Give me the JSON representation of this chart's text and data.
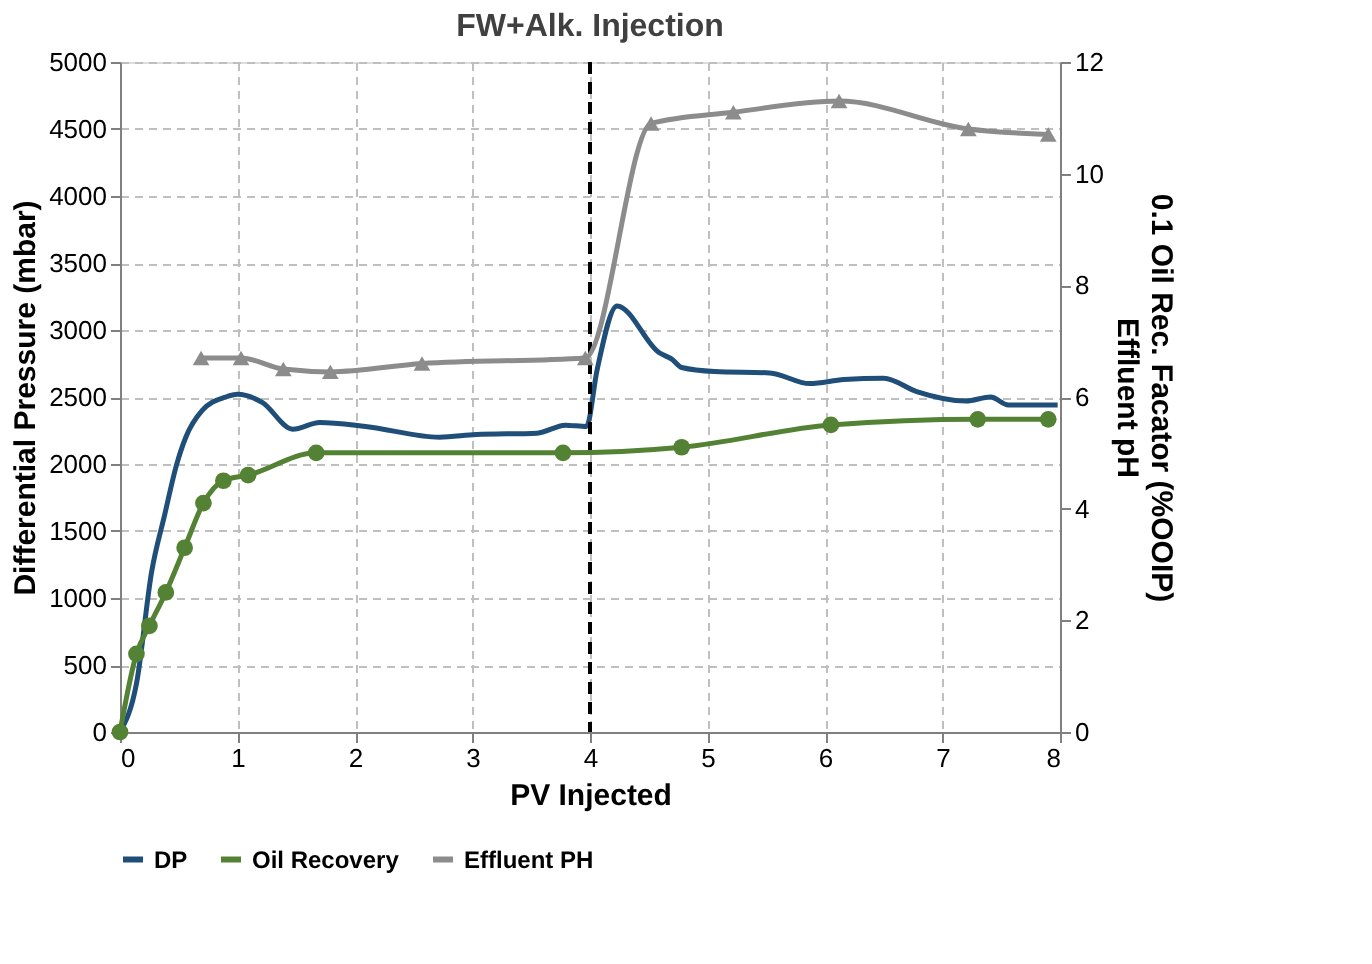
{
  "chart_data": {
    "type": "line",
    "title": "FW+Alk. Injection",
    "xlabel": "PV Injected",
    "ylabel": "Differential Pressure (mbar)",
    "y2label": "0.1 Oil Rec. Facator (%OOIP)\nEffluent pH",
    "xlim": [
      0,
      8
    ],
    "xticks": [
      0,
      1,
      2,
      3,
      4,
      5,
      6,
      7,
      8
    ],
    "ylim": [
      0,
      5000
    ],
    "yticks": [
      0,
      500,
      1000,
      1500,
      2000,
      2500,
      3000,
      3500,
      4000,
      4500,
      5000
    ],
    "y2lim": [
      0,
      12
    ],
    "y2ticks": [
      0,
      2,
      4,
      6,
      8,
      10,
      12
    ],
    "grid": true,
    "legend": "bottom",
    "line_style": "solid",
    "ref_lines": [
      {
        "axis": "x",
        "value": 4,
        "color": "#000000",
        "line_style": "dashed"
      }
    ],
    "series": [
      {
        "name": "DP",
        "color": "#1f4e79",
        "marker": "none",
        "x": [
          0,
          0.14,
          0.27,
          0.38,
          0.48,
          0.56,
          0.7,
          0.9,
          1.0,
          1.21,
          1.47,
          1.7,
          2.09,
          2.72,
          3.03,
          3.55,
          3.79,
          3.97,
          4.06,
          4.23,
          4.59,
          4.7,
          4.78,
          5.06,
          5.53,
          5.87,
          6.16,
          6.5,
          6.78,
          7.2,
          7.41,
          7.56,
          7.98
        ],
        "values": [
          0,
          360,
          1200,
          1620,
          1990,
          2200,
          2400,
          2500,
          2520,
          2460,
          2260,
          2310,
          2280,
          2200,
          2220,
          2230,
          2290,
          2280,
          2700,
          3180,
          2830,
          2780,
          2720,
          2690,
          2680,
          2600,
          2630,
          2640,
          2540,
          2470,
          2500,
          2440,
          2440
        ]
      },
      {
        "name": "Oil Recovery",
        "color": "#548235",
        "marker": "circle",
        "axis": "y2",
        "x": [
          0,
          0.14,
          0.25,
          0.39,
          0.55,
          0.71,
          0.88,
          1.09,
          1.67,
          3.77,
          4.78,
          6.05,
          7.3,
          7.9
        ],
        "values": [
          0,
          1.4,
          1.9,
          2.5,
          3.3,
          4.1,
          4.5,
          4.6,
          5.0,
          5.0,
          5.1,
          5.5,
          5.6,
          5.6
        ]
      },
      {
        "name": "Effluent PH",
        "color": "#8c8c8c",
        "marker": "triangle",
        "axis": "y2",
        "x": [
          0.69,
          1.03,
          1.39,
          1.79,
          2.57,
          3.96,
          4.52,
          5.22,
          6.12,
          7.22,
          7.9
        ],
        "values": [
          6.7,
          6.7,
          6.5,
          6.45,
          6.6,
          6.7,
          10.9,
          11.1,
          11.3,
          10.8,
          10.7
        ]
      }
    ]
  }
}
